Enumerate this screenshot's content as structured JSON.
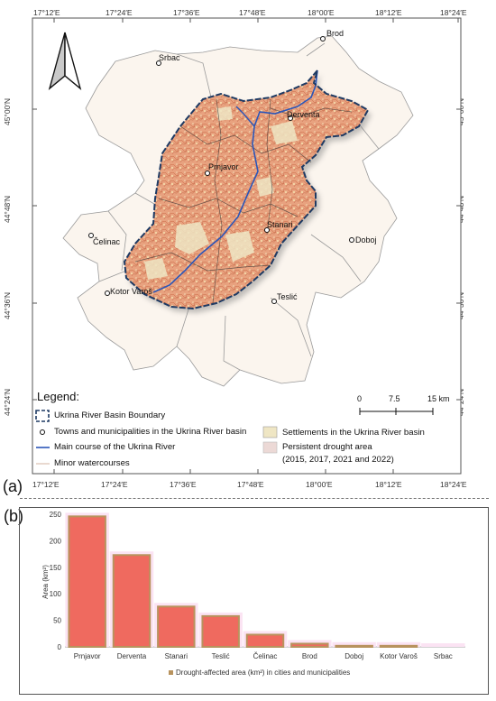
{
  "panels": {
    "a": "(a)",
    "b": "(b)"
  },
  "map": {
    "lon_ticks": [
      "17°12′E",
      "17°24′E",
      "17°36′E",
      "17°48′E",
      "18°00′E",
      "18°12′E",
      "18°24′E"
    ],
    "lat_ticks": [
      "45°00′N",
      "44°48′N",
      "44°36′N",
      "44°24′N"
    ],
    "towns": [
      {
        "name": "Brod"
      },
      {
        "name": "Srbac"
      },
      {
        "name": "Derventa"
      },
      {
        "name": "Prnjavor"
      },
      {
        "name": "Stanari"
      },
      {
        "name": "Doboj"
      },
      {
        "name": "Čelinac"
      },
      {
        "name": "Kotor Varoš"
      },
      {
        "name": "Teslić"
      }
    ],
    "legend": {
      "title": "Legend:",
      "boundary": "Ukrina River Basin Boundary",
      "towns": "Towns and municipalities in the Ukrina River basin",
      "river": "Main course of the Ukrina River",
      "minor": "Minor watercourses",
      "settlements": "Settlements in the Ukrina River basin",
      "drought": "Persistent drought area",
      "drought_years": "(2015, 2017, 2021 and 2022)"
    },
    "scale": {
      "zero": "0",
      "mid": "7.5",
      "max": "15 km"
    },
    "colors": {
      "drought": "#e8a27f",
      "settlement": "#efe6c4",
      "background": "#fbf5ee",
      "river": "#2b56b8",
      "boundary": "#1e3a63"
    }
  },
  "chart_data": {
    "type": "bar",
    "categories": [
      "Prnjavor",
      "Derventa",
      "Stanari",
      "Teslić",
      "Čelinac",
      "Brod",
      "Doboj",
      "Kotor Varoš",
      "Srbac"
    ],
    "series": [
      {
        "name": "Drought-affected area (km²) in cities and municipalities",
        "values": [
          246,
          173,
          76,
          58,
          23,
          6,
          2,
          2,
          0
        ]
      }
    ],
    "ylabel": "Area (km²)",
    "xlabel": "",
    "ylim": [
      0,
      250
    ],
    "yticks": [
      "0",
      "50",
      "100",
      "150",
      "200",
      "250"
    ],
    "grid": false,
    "legend": "bottom",
    "colors": {
      "bar": "#ef6a5f",
      "bar_edge": "#b8935e",
      "glow": "#fbe3f3"
    }
  }
}
